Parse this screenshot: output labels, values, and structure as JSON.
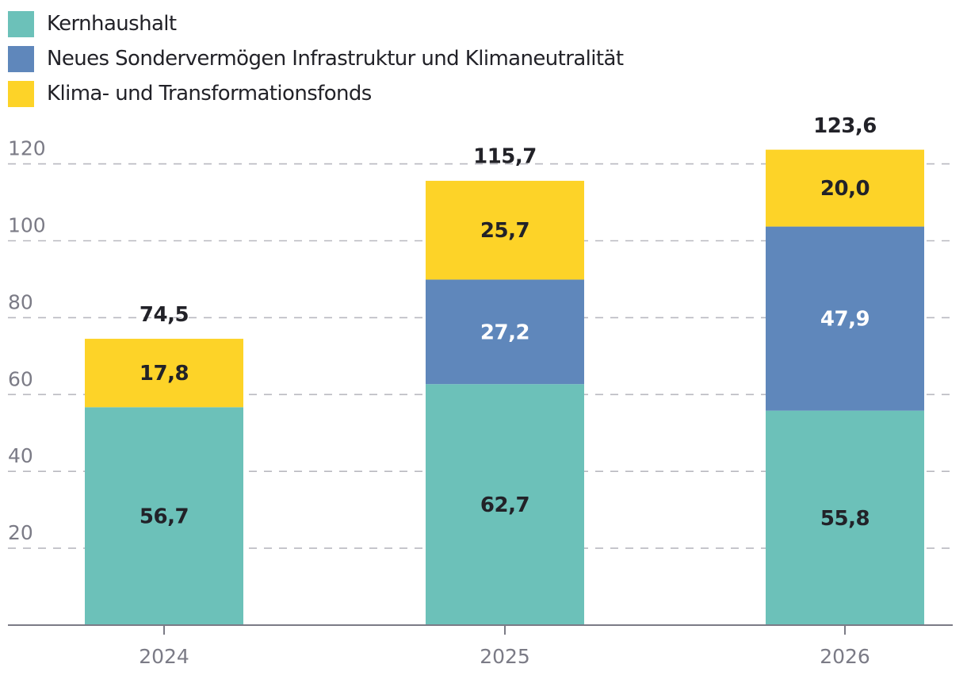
{
  "chart_data": {
    "type": "bar",
    "stacked": true,
    "categories": [
      "2024",
      "2025",
      "2026"
    ],
    "series": [
      {
        "name": "Kernhaushalt",
        "color": "#6cc1b9",
        "label_color": "#222228",
        "values": [
          56.7,
          62.7,
          55.8
        ],
        "labels": [
          "56,7",
          "62,7",
          "55,8"
        ]
      },
      {
        "name": "Neues Sondervermögen Infrastruktur und Klimaneutralität",
        "color": "#5f87bb",
        "label_color": "#ffffff",
        "values": [
          0,
          27.2,
          47.9
        ],
        "labels": [
          "",
          "27,2",
          "47,9"
        ]
      },
      {
        "name": "Klima- und Transformationsfonds",
        "color": "#fdd328",
        "label_color": "#222228",
        "values": [
          17.8,
          25.7,
          20.0
        ],
        "labels": [
          "17,8",
          "25,7",
          "20,0"
        ]
      }
    ],
    "totals": [
      74.5,
      115.7,
      123.6
    ],
    "total_labels": [
      "74,5",
      "115,7",
      "123,6"
    ],
    "yticks": [
      20,
      40,
      60,
      80,
      100,
      120
    ],
    "ytick_labels": [
      "20",
      "40",
      "60",
      "80",
      "100",
      "120"
    ],
    "ylim": [
      0,
      125
    ],
    "grid": true,
    "legend_position": "top-left",
    "title": "",
    "xlabel": "",
    "ylabel": ""
  }
}
